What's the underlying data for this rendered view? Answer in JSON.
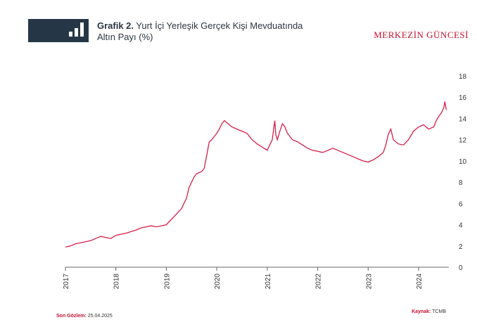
{
  "header": {
    "title_bold": "Grafik 2.",
    "title_line1": " Yurt İçi Yerleşik Gerçek Kişi Mevduatında",
    "title_line2": "Altın Payı (%)",
    "brand": "MERKEZİN GÜNCESİ",
    "icon": "bar-chart-icon"
  },
  "footer": {
    "son_gozlem_label": "Son Gözlem:",
    "son_gozlem_value": "25.04.2025",
    "kaynak_label": "Kaynak:",
    "kaynak_value": "TCMB"
  },
  "colors": {
    "line": "#d41f4a",
    "header_box": "#253746",
    "accent": "#c8102e"
  },
  "chart_data": {
    "type": "line",
    "title": "",
    "xlabel": "",
    "ylabel": "",
    "xlim": [
      2017,
      2024.6
    ],
    "ylim": [
      0,
      18
    ],
    "x_ticks": [
      "2017",
      "2018",
      "2019",
      "2020",
      "2021",
      "2022",
      "2023",
      "2024"
    ],
    "y_ticks": [
      0,
      2,
      4,
      6,
      8,
      10,
      12,
      14,
      16,
      18
    ],
    "grid": false,
    "series": [
      {
        "x": [
          2017.0,
          2017.1,
          2017.2,
          2017.3,
          2017.4,
          2017.5,
          2017.6,
          2017.7,
          2017.8,
          2017.9,
          2018.0,
          2018.2,
          2018.4,
          2018.5,
          2018.6,
          2018.7,
          2018.8,
          2018.9,
          2019.0,
          2019.1,
          2019.2,
          2019.3,
          2019.4,
          2019.45,
          2019.5,
          2019.55,
          2019.6,
          2019.7,
          2019.75,
          2019.8,
          2019.85,
          2019.9,
          2019.95,
          2020.0,
          2020.05,
          2020.1,
          2020.15,
          2020.2,
          2020.3,
          2020.4,
          2020.5,
          2020.6,
          2020.7,
          2020.8,
          2020.9,
          2021.0,
          2021.05,
          2021.1,
          2021.15,
          2021.17,
          2021.2,
          2021.25,
          2021.3,
          2021.35,
          2021.4,
          2021.5,
          2021.6,
          2021.7,
          2021.8,
          2021.9,
          2022.0,
          2022.1,
          2022.2,
          2022.3,
          2022.4,
          2022.5,
          2022.6,
          2022.7,
          2022.8,
          2022.9,
          2023.0,
          2023.1,
          2023.2,
          2023.3,
          2023.35,
          2023.4,
          2023.45,
          2023.5,
          2023.6,
          2023.7,
          2023.8,
          2023.9,
          2024.0,
          2024.1,
          2024.2,
          2024.3,
          2024.35,
          2024.4,
          2024.45,
          2024.5,
          2024.52,
          2024.55
        ],
        "values": [
          1.9,
          2.0,
          2.2,
          2.3,
          2.4,
          2.5,
          2.7,
          2.9,
          2.8,
          2.7,
          3.0,
          3.2,
          3.5,
          3.7,
          3.8,
          3.9,
          3.8,
          3.9,
          4.0,
          4.5,
          5.0,
          5.5,
          6.5,
          7.5,
          8.0,
          8.5,
          8.8,
          9.0,
          9.3,
          10.5,
          11.8,
          12.0,
          12.3,
          12.6,
          13.0,
          13.5,
          13.8,
          13.6,
          13.2,
          13.0,
          12.8,
          12.6,
          12.0,
          11.6,
          11.3,
          11.0,
          11.5,
          12.0,
          13.8,
          12.5,
          12.0,
          12.8,
          13.5,
          13.2,
          12.6,
          12.0,
          11.8,
          11.5,
          11.2,
          11.0,
          10.9,
          10.8,
          11.0,
          11.2,
          11.0,
          10.8,
          10.6,
          10.4,
          10.2,
          10.0,
          9.9,
          10.1,
          10.4,
          10.8,
          11.5,
          12.5,
          13.0,
          12.0,
          11.6,
          11.5,
          12.0,
          12.8,
          13.2,
          13.4,
          13.0,
          13.2,
          13.8,
          14.2,
          14.5,
          15.0,
          15.6,
          14.8
        ]
      }
    ]
  }
}
